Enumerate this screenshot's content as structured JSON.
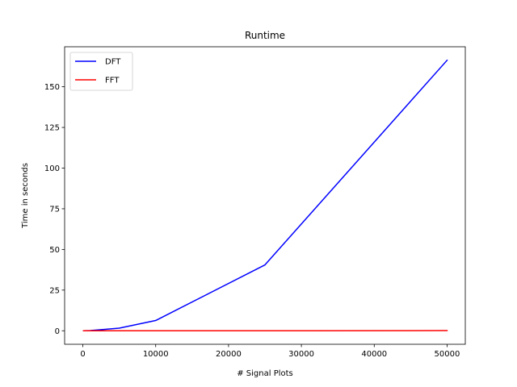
{
  "chart_data": {
    "type": "line",
    "title": "Runtime",
    "xlabel": "# Signal Plots",
    "ylabel": "Time in seconds",
    "xlim": [
      -2500,
      52500
    ],
    "ylim": [
      -8.3,
      174.6
    ],
    "xticks": [
      0,
      10000,
      20000,
      30000,
      40000,
      50000
    ],
    "yticks": [
      0,
      25,
      50,
      75,
      100,
      125,
      150
    ],
    "grid": false,
    "legend_position": "top-left",
    "series": [
      {
        "name": "DFT",
        "color": "#0000ff",
        "x": [
          100,
          1000,
          5000,
          10000,
          25000,
          50000
        ],
        "y": [
          0.0,
          0.1,
          1.6,
          6.3,
          40.5,
          166.3
        ]
      },
      {
        "name": "FFT",
        "color": "#ff0000",
        "x": [
          100,
          1000,
          5000,
          10000,
          25000,
          50000
        ],
        "y": [
          0.0,
          0.0,
          0.0,
          0.0,
          0.0,
          0.1
        ]
      }
    ]
  }
}
